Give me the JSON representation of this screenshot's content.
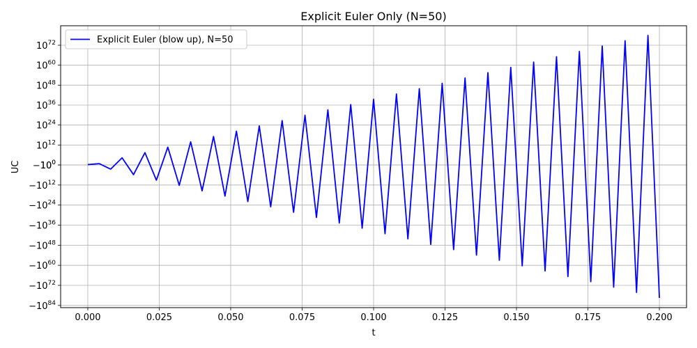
{
  "chart_data": {
    "type": "line",
    "title": "Explicit Euler Only (N=50)",
    "xlabel": "t",
    "ylabel": "UC",
    "xlim": [
      -0.0095,
      0.2095
    ],
    "ylim_exponent": [
      -85,
      84
    ],
    "y_scale": "symlog",
    "grid": true,
    "legend_placement": "top-left",
    "x_ticks": [
      {
        "value": 0.0,
        "label": "0.000"
      },
      {
        "value": 0.025,
        "label": "0.025"
      },
      {
        "value": 0.05,
        "label": "0.050"
      },
      {
        "value": 0.075,
        "label": "0.075"
      },
      {
        "value": 0.1,
        "label": "0.100"
      },
      {
        "value": 0.125,
        "label": "0.125"
      },
      {
        "value": 0.15,
        "label": "0.150"
      },
      {
        "value": 0.175,
        "label": "0.175"
      },
      {
        "value": 0.2,
        "label": "0.200"
      }
    ],
    "y_ticks": [
      {
        "exponent": 72,
        "sign": 1,
        "base": "10",
        "power": "72"
      },
      {
        "exponent": 60,
        "sign": 1,
        "base": "10",
        "power": "60"
      },
      {
        "exponent": 48,
        "sign": 1,
        "base": "10",
        "power": "48"
      },
      {
        "exponent": 36,
        "sign": 1,
        "base": "10",
        "power": "36"
      },
      {
        "exponent": 24,
        "sign": 1,
        "base": "10",
        "power": "24"
      },
      {
        "exponent": 12,
        "sign": 1,
        "base": "10",
        "power": "12"
      },
      {
        "exponent": 0,
        "sign": 1,
        "base": "10",
        "power": "0"
      },
      {
        "exponent": 0,
        "sign": -1,
        "base": "−10",
        "power": "0"
      },
      {
        "exponent": 12,
        "sign": -1,
        "base": "−10",
        "power": "12"
      },
      {
        "exponent": 24,
        "sign": -1,
        "base": "−10",
        "power": "24"
      },
      {
        "exponent": 36,
        "sign": -1,
        "base": "−10",
        "power": "36"
      },
      {
        "exponent": 48,
        "sign": -1,
        "base": "−10",
        "power": "48"
      },
      {
        "exponent": 60,
        "sign": -1,
        "base": "−10",
        "power": "60"
      },
      {
        "exponent": 72,
        "sign": -1,
        "base": "−10",
        "power": "72"
      },
      {
        "exponent": 84,
        "sign": -1,
        "base": "−10",
        "power": "84"
      }
    ],
    "series": [
      {
        "name": "Explicit Euler (blow up), N=50",
        "color": "#0000ff",
        "x": [
          0.0,
          0.004,
          0.008,
          0.012,
          0.016,
          0.02,
          0.024,
          0.028,
          0.032,
          0.036,
          0.04,
          0.044,
          0.048,
          0.052,
          0.056,
          0.06,
          0.064,
          0.068,
          0.072,
          0.076,
          0.08,
          0.084,
          0.088,
          0.092,
          0.096,
          0.1,
          0.104,
          0.108,
          0.112,
          0.116,
          0.12,
          0.124,
          0.128,
          0.132,
          0.136,
          0.14,
          0.144,
          0.148,
          0.152,
          0.156,
          0.16,
          0.164,
          0.168,
          0.172,
          0.176,
          0.18,
          0.184,
          0.188,
          0.192,
          0.196,
          0.2
        ],
        "y_sign": [
          1,
          1,
          -1,
          1,
          -1,
          1,
          -1,
          1,
          -1,
          1,
          -1,
          1,
          -1,
          1,
          -1,
          1,
          -1,
          1,
          -1,
          1,
          -1,
          1,
          -1,
          1,
          -1,
          1,
          -1,
          1,
          -1,
          1,
          -1,
          1,
          -1,
          1,
          -1,
          1,
          -1,
          1,
          -1,
          1,
          -1,
          1,
          -1,
          1,
          -1,
          1,
          -1,
          1,
          -1,
          1,
          -1
        ],
        "y_log10_magnitude": [
          0.2,
          0.8,
          2.5,
          4.3,
          5.8,
          7.4,
          9.1,
          10.7,
          12.2,
          13.9,
          15.5,
          17.1,
          18.6,
          20.3,
          21.9,
          23.5,
          25.0,
          26.7,
          28.3,
          29.9,
          31.4,
          33.1,
          34.7,
          36.3,
          37.8,
          39.5,
          41.1,
          42.7,
          44.2,
          45.9,
          47.5,
          49.1,
          50.6,
          52.3,
          53.9,
          55.5,
          57.0,
          58.7,
          60.3,
          61.9,
          63.4,
          65.1,
          66.7,
          68.3,
          69.8,
          71.5,
          73.1,
          74.7,
          76.2,
          77.9,
          79.5
        ]
      }
    ]
  }
}
